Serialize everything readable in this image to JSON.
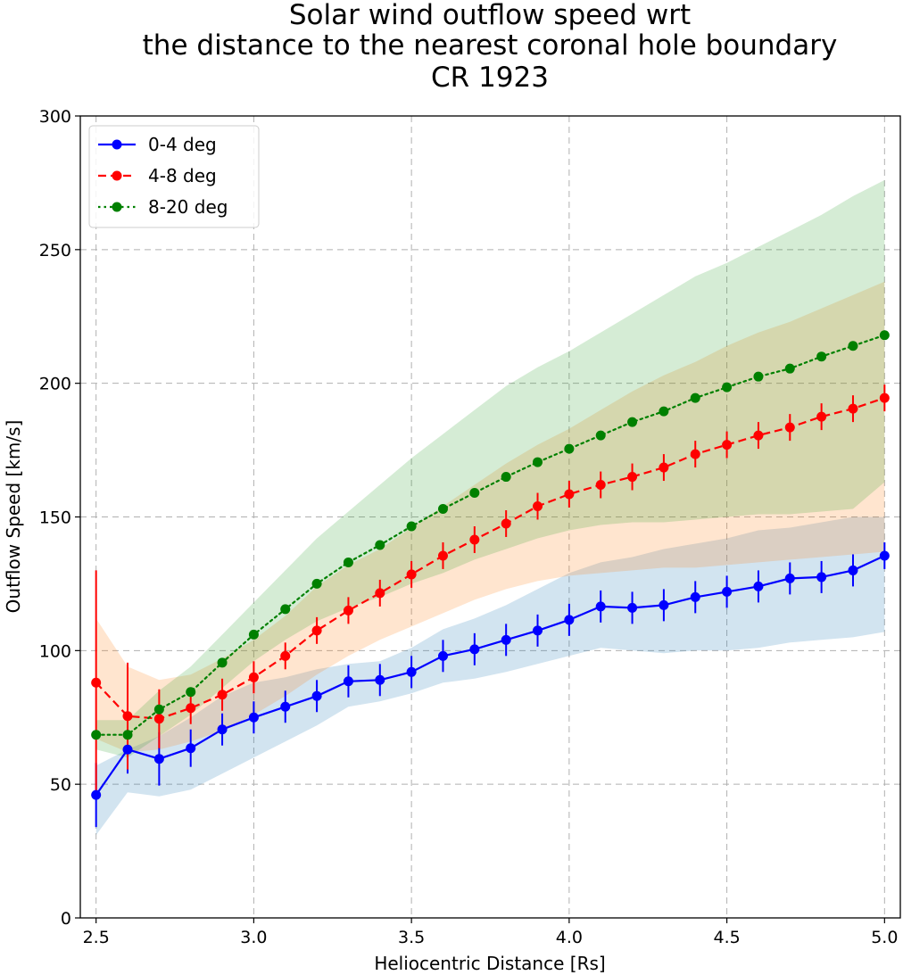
{
  "chart_data": {
    "type": "line",
    "title_lines": [
      "Solar wind outflow speed wrt",
      "the distance to the nearest coronal hole boundary",
      "CR 1923"
    ],
    "xlabel": "Heliocentric Distance [Rs]",
    "ylabel": "Outflow Speed [km/s]",
    "xlim": [
      2.45,
      5.05
    ],
    "ylim": [
      0,
      300
    ],
    "xticks": [
      2.5,
      3.0,
      3.5,
      4.0,
      4.5,
      5.0
    ],
    "xtick_labels": [
      "2.5",
      "3.0",
      "3.5",
      "4.0",
      "4.5",
      "5.0"
    ],
    "yticks": [
      0,
      50,
      100,
      150,
      200,
      250,
      300
    ],
    "ytick_labels": [
      "0",
      "50",
      "100",
      "150",
      "200",
      "250",
      "300"
    ],
    "grid": true,
    "legend_position": "top-left",
    "x": [
      2.5,
      2.6,
      2.7,
      2.8,
      2.9,
      3.0,
      3.1,
      3.2,
      3.3,
      3.4,
      3.5,
      3.6,
      3.7,
      3.8,
      3.9,
      4.0,
      4.1,
      4.2,
      4.3,
      4.4,
      4.5,
      4.6,
      4.7,
      4.8,
      4.9,
      5.0
    ],
    "series": [
      {
        "name": "0-4 deg",
        "color": "#0000ff",
        "band_color": "#1f77b4",
        "linestyle": "solid",
        "values": [
          46,
          63,
          59.5,
          63.5,
          70.5,
          75,
          79,
          83,
          88.5,
          89,
          92,
          98,
          100.5,
          104,
          107.5,
          111.5,
          116.5,
          116,
          117,
          120,
          122,
          124,
          127,
          127.5,
          130,
          135.5
        ],
        "err": [
          12,
          9,
          10,
          7,
          6,
          6,
          6,
          6,
          6,
          6,
          6,
          6,
          6,
          6,
          6,
          6,
          6,
          6,
          6,
          6,
          6,
          6,
          6,
          6,
          6,
          5
        ],
        "band_lower": [
          31,
          47,
          45.5,
          48,
          54,
          60,
          66,
          72,
          79,
          81,
          84,
          88,
          89.5,
          92,
          95,
          98,
          101,
          100,
          99,
          100,
          100,
          101,
          103,
          104,
          105,
          107
        ],
        "band_upper": [
          57,
          63,
          68,
          75,
          83,
          88,
          90,
          93,
          95,
          96,
          101,
          108,
          112,
          117,
          123,
          129,
          133,
          135,
          138,
          140,
          142,
          145,
          146,
          148,
          150,
          150
        ]
      },
      {
        "name": "4-8 deg",
        "color": "#ff0000",
        "band_color": "#ff7f0e",
        "linestyle": "dashed",
        "values": [
          88,
          75.5,
          74.5,
          78.5,
          83.5,
          90,
          98,
          107.5,
          115,
          121.5,
          128.5,
          135.5,
          141.5,
          147.5,
          154,
          158.5,
          162,
          165,
          168.5,
          173.5,
          177,
          180.5,
          183.5,
          187.5,
          190.5,
          194.5
        ],
        "err": [
          42,
          20,
          11,
          6,
          6,
          6,
          5,
          5,
          5,
          5,
          5,
          5,
          5,
          5,
          5,
          5,
          5,
          5,
          5,
          5,
          5,
          5,
          5,
          5,
          5,
          5
        ],
        "band_lower": [
          67,
          62,
          63,
          66,
          70,
          76,
          83,
          91,
          98,
          104,
          109,
          114,
          119,
          123,
          126,
          128,
          129,
          130,
          131,
          131,
          132,
          133,
          134,
          135,
          136,
          137
        ],
        "band_upper": [
          112,
          94,
          89,
          91,
          97,
          104,
          113,
          124,
          132,
          138,
          146,
          154,
          162,
          170,
          177,
          183,
          190,
          197,
          203,
          208,
          214,
          219,
          223,
          228,
          233,
          238
        ]
      },
      {
        "name": "8-20 deg",
        "color": "#008000",
        "band_color": "#2ca02c",
        "linestyle": "dotted",
        "values": [
          68.5,
          68.5,
          78,
          84.5,
          95.5,
          106,
          115.5,
          125,
          133,
          139.5,
          146.5,
          153,
          159,
          165,
          170.5,
          175.5,
          180.5,
          185.5,
          189.5,
          194.5,
          198.5,
          202.5,
          205.5,
          210,
          214,
          218
        ],
        "err": [
          0,
          0,
          0,
          0,
          0,
          0,
          0,
          0,
          0,
          0,
          0,
          0,
          0,
          0,
          0,
          0,
          0,
          0,
          0,
          0,
          0,
          0,
          0,
          0,
          0,
          0
        ],
        "band_lower": [
          63,
          60,
          68,
          76,
          86,
          96,
          104,
          111,
          116,
          120,
          125,
          129,
          134,
          138,
          142,
          145,
          147,
          148,
          148,
          149,
          150,
          151,
          151,
          152,
          153,
          163
        ],
        "band_upper": [
          74,
          74,
          85,
          94,
          106,
          118,
          130,
          142,
          152,
          162,
          172,
          181,
          190,
          199,
          206,
          212,
          219,
          226,
          233,
          240,
          245,
          251,
          257,
          263,
          270,
          276
        ]
      }
    ]
  }
}
